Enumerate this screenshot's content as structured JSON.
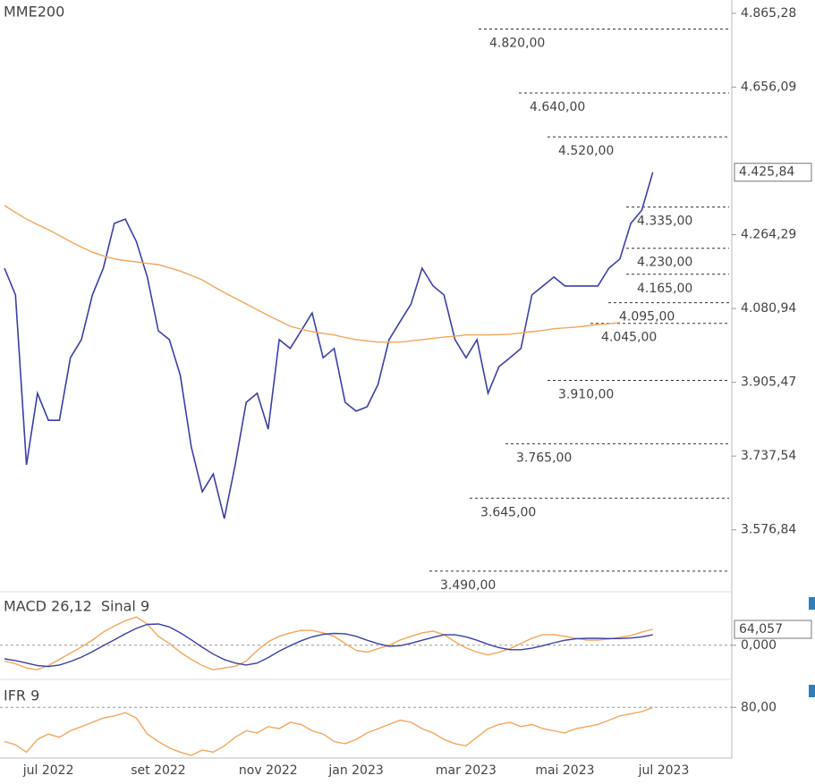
{
  "chart_data": [
    {
      "type": "line",
      "log_scale": true,
      "categories": [
        null,
        null,
        null,
        null,
        "jul 2022",
        null,
        null,
        null,
        null,
        null,
        null,
        null,
        null,
        null,
        "set 2022",
        null,
        null,
        null,
        null,
        null,
        null,
        null,
        null,
        null,
        "nov 2022",
        null,
        null,
        null,
        null,
        null,
        null,
        null,
        "jan 2023",
        null,
        null,
        null,
        null,
        null,
        null,
        null,
        null,
        null,
        "mar 2023",
        null,
        null,
        null,
        null,
        null,
        null,
        null,
        null,
        "mai 2023",
        null,
        null,
        null,
        null,
        null,
        null,
        null,
        null,
        "jul 2023"
      ],
      "series": [
        {
          "color": "#3b3fa6",
          "values": [
            4180,
            4114,
            3718,
            3880,
            3818,
            3818,
            3963,
            4006,
            4114,
            4180,
            4293,
            4304,
            4247,
            4158,
            4027,
            4006,
            3922,
            3758,
            3659,
            3698,
            3601,
            3718,
            3859,
            3880,
            3798,
            4006,
            3985,
            4027,
            4070,
            3963,
            3985,
            3859,
            3839,
            3849,
            3901,
            4006,
            4049,
            4092,
            4180,
            4136,
            4114,
            4006,
            3963,
            4006,
            3880,
            3942,
            3963,
            3985,
            4114,
            4136,
            4158,
            4136,
            4136,
            4136,
            4136,
            4180,
            4203,
            4293,
            4327,
            4425.84,
            null
          ]
        },
        {
          "name": "MME200",
          "color": "#f2a65a",
          "values": [
            4339,
            4321,
            4304,
            4290,
            4277,
            4262,
            4247,
            4233,
            4220,
            4211,
            4203,
            4199,
            4196,
            4192,
            4189,
            4181,
            4173,
            4162,
            4151,
            4135,
            4120,
            4106,
            4092,
            4078,
            4064,
            4051,
            4038,
            4031,
            4025,
            4021,
            4017,
            4011,
            4006,
            4003,
            4000,
            4000,
            4000,
            4003,
            4006,
            4009,
            4012,
            4014,
            4017,
            4017,
            4017,
            4018,
            4019,
            4022,
            4025,
            4028,
            4032,
            4034,
            4036,
            4039,
            4042,
            4044,
            4047,
            null,
            null,
            null,
            null
          ]
        }
      ],
      "ylim": [
        3451,
        4904
      ],
      "yticks": [
        {
          "value": 3576.84,
          "label": "3.576,84"
        },
        {
          "value": 3737.54,
          "label": "3.737,54"
        },
        {
          "value": 3905.47,
          "label": "3.905,47"
        },
        {
          "value": 4080.94,
          "label": "4.080,94"
        },
        {
          "value": 4264.29,
          "label": "4.264,29"
        },
        {
          "value": 4656.09,
          "label": "4.656,09"
        },
        {
          "value": 4865.28,
          "label": "4.865,28"
        }
      ],
      "last_value": {
        "value": 4425.84,
        "label": "4.425,84"
      },
      "annotations": [
        {
          "value": 4820,
          "label": "4.820,00"
        },
        {
          "value": 4640,
          "label": "4.640,00"
        },
        {
          "value": 4520,
          "label": "4.520,00"
        },
        {
          "value": 4335,
          "label": "4.335,00"
        },
        {
          "value": 4230,
          "label": "4.230,00"
        },
        {
          "value": 4165,
          "label": "4.165,00"
        },
        {
          "value": 4095,
          "label": "4.095,00"
        },
        {
          "value": 4045,
          "label": "4.045,00"
        },
        {
          "value": 3910,
          "label": "3.910,00"
        },
        {
          "value": 3765,
          "label": "3.765,00"
        },
        {
          "value": 3645,
          "label": "3.645,00"
        },
        {
          "value": 3490,
          "label": "3.490,00"
        }
      ]
    },
    {
      "type": "line",
      "series": [
        {
          "name": "MACD 26,12",
          "color": "#f2a65a",
          "values": [
            -64,
            -75,
            -92,
            -99,
            -82,
            -57,
            -32,
            -7,
            21,
            53,
            78,
            99,
            114,
            85,
            36,
            7,
            -28,
            -57,
            -82,
            -99,
            -92,
            -85,
            -64,
            -21,
            14,
            36,
            50,
            60,
            60,
            50,
            36,
            7,
            -21,
            -28,
            -14,
            0,
            21,
            36,
            50,
            57,
            43,
            14,
            -11,
            -28,
            -39,
            -28,
            -14,
            7,
            28,
            43,
            43,
            36,
            28,
            21,
            21,
            25,
            32,
            39,
            53,
            64.057,
            null
          ]
        },
        {
          "name": "Sinal 9",
          "color": "#3b3fa6",
          "values": [
            -55,
            -62,
            -72,
            -82,
            -86,
            -80,
            -66,
            -48,
            -26,
            -2,
            22,
            46,
            68,
            84,
            86,
            74,
            50,
            22,
            -8,
            -36,
            -58,
            -72,
            -80,
            -72,
            -50,
            -24,
            -2,
            18,
            34,
            44,
            48,
            46,
            36,
            20,
            6,
            -4,
            -2,
            8,
            20,
            32,
            42,
            42,
            34,
            20,
            4,
            -10,
            -18,
            -18,
            -12,
            -2,
            10,
            20,
            26,
            28,
            28,
            27,
            27,
            29,
            34,
            42,
            null
          ]
        }
      ],
      "ylim": [
        -120,
        205
      ],
      "yticks": [
        {
          "value": 0,
          "label": "0,000"
        }
      ],
      "last_value": {
        "value": 64.057,
        "label": "64,057"
      }
    },
    {
      "type": "line",
      "series": [
        {
          "name": "IFR 9",
          "color": "#f2a65a",
          "values": [
            48,
            45,
            38,
            50,
            55,
            52,
            58,
            62,
            66,
            70,
            72,
            75,
            70,
            55,
            48,
            42,
            38,
            35,
            40,
            38,
            44,
            52,
            58,
            56,
            62,
            60,
            66,
            64,
            58,
            55,
            48,
            46,
            50,
            56,
            60,
            64,
            68,
            66,
            60,
            56,
            50,
            46,
            44,
            52,
            60,
            64,
            66,
            62,
            64,
            60,
            58,
            56,
            60,
            62,
            64,
            68,
            72,
            74,
            76,
            80,
            null
          ]
        }
      ],
      "ylim": [
        35,
        102
      ],
      "yticks": [
        {
          "value": 80,
          "label": "80,00"
        }
      ]
    }
  ]
}
